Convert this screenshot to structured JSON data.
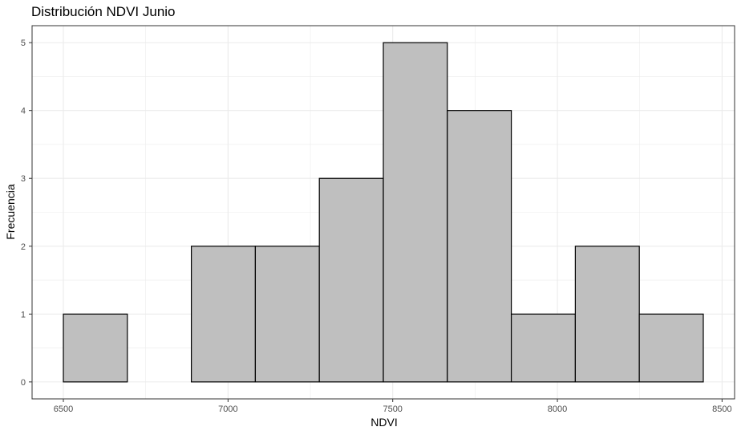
{
  "chart_data": {
    "type": "histogram",
    "title": "Distribución NDVI Junio",
    "xlabel": "NDVI",
    "ylabel": "Frecuencia",
    "bin_width": 194.3,
    "bins": [
      {
        "start": 6500.0,
        "end": 6694.3,
        "count": 1
      },
      {
        "start": 6694.3,
        "end": 6888.6,
        "count": 0
      },
      {
        "start": 6888.6,
        "end": 7082.9,
        "count": 2
      },
      {
        "start": 7082.9,
        "end": 7277.2,
        "count": 2
      },
      {
        "start": 7277.2,
        "end": 7471.5,
        "count": 3
      },
      {
        "start": 7471.5,
        "end": 7665.8,
        "count": 5
      },
      {
        "start": 7665.8,
        "end": 7860.1,
        "count": 4
      },
      {
        "start": 7860.1,
        "end": 8054.4,
        "count": 1
      },
      {
        "start": 8054.4,
        "end": 8248.7,
        "count": 2
      },
      {
        "start": 8248.7,
        "end": 8443.0,
        "count": 1
      }
    ],
    "xlim": [
      6405,
      8538
    ],
    "ylim": [
      -0.25,
      5.25
    ],
    "x_ticks": [
      6500,
      7000,
      7500,
      8000,
      8500
    ],
    "y_ticks": [
      0,
      1,
      2,
      3,
      4,
      5
    ],
    "grid": true,
    "colors": {
      "bar_fill": "#bfbfbf",
      "bar_stroke": "#000000",
      "grid": "#ebebeb",
      "panel_border": "#333333"
    }
  }
}
